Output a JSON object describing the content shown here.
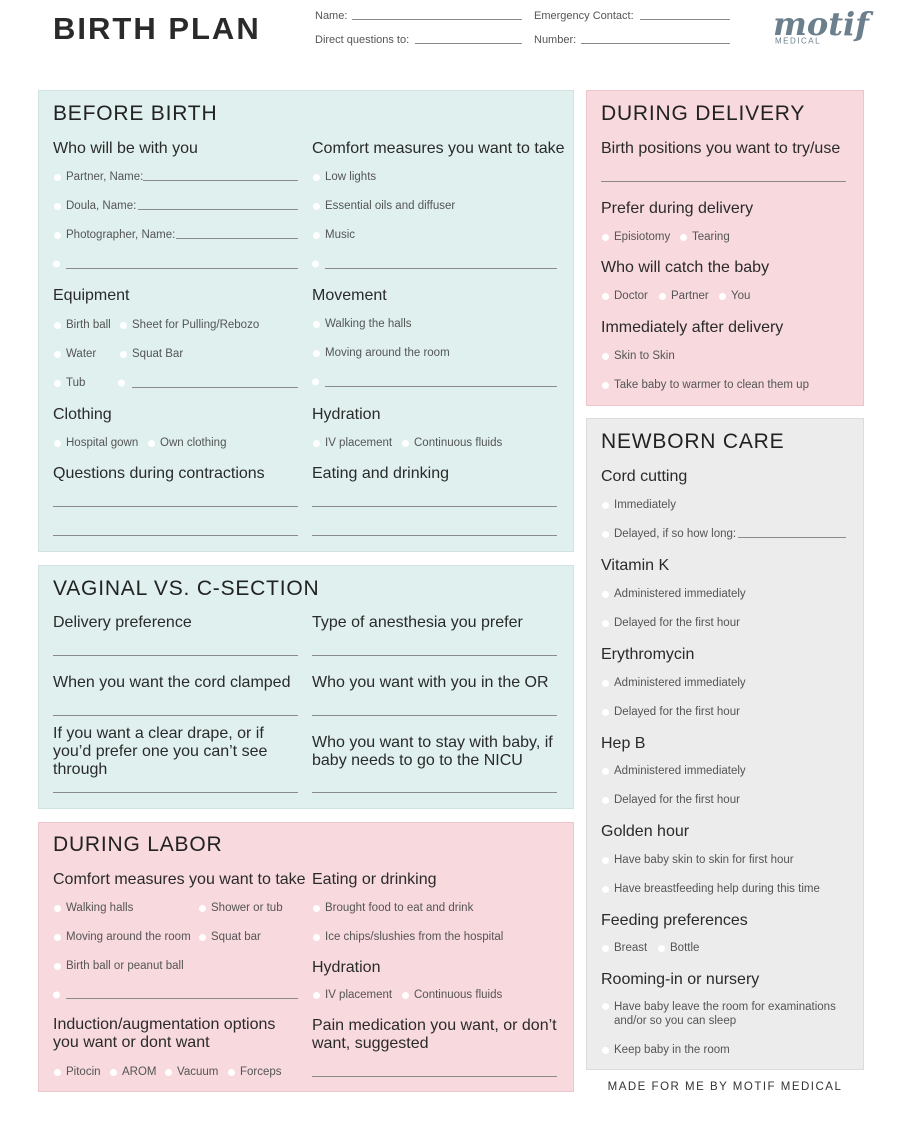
{
  "header": {
    "title": "BIRTH PLAN",
    "fields": [
      "Name:",
      "Emergency Contact:",
      "Direct questions to:",
      "Number:"
    ],
    "logo": "motif",
    "logo_sub": "MEDICAL"
  },
  "before_birth": {
    "title": "BEFORE BIRTH",
    "groups": [
      {
        "heading": "Who will be with you",
        "options": [
          "Partner, Name:",
          "Doula, Name:",
          "Photographer, Name:"
        ]
      },
      {
        "heading": "Comfort measures you want to take",
        "options": [
          "Low lights",
          "Essential oils and diffuser",
          "Music"
        ]
      },
      {
        "heading": "Equipment",
        "options": [
          "Birth ball",
          "Sheet for Pulling/Rebozo",
          "Water",
          "Squat Bar",
          "Tub"
        ]
      },
      {
        "heading": "Movement",
        "options": [
          "Walking the halls",
          "Moving around the room"
        ]
      },
      {
        "heading": "Clothing",
        "options": [
          "Hospital gown",
          "Own clothing"
        ]
      },
      {
        "heading": "Hydration",
        "options": [
          "IV placement",
          "Continuous fluids"
        ]
      },
      {
        "heading": "Questions during contractions"
      },
      {
        "heading": "Eating and drinking"
      }
    ]
  },
  "vaginal_vs_c_section": {
    "title": "VAGINAL VS. C-SECTION",
    "groups": [
      {
        "heading": "Delivery preference"
      },
      {
        "heading": "Type of anesthesia you prefer"
      },
      {
        "heading": "When you want the cord clamped"
      },
      {
        "heading": "Who you want with you in the OR"
      },
      {
        "heading": "If you want a clear drape, or if you’d prefer one you can’t see through"
      },
      {
        "heading": "Who you want to stay with baby, if baby needs to go to the NICU"
      }
    ]
  },
  "during_labor": {
    "title": "DURING LABOR",
    "groups": [
      {
        "heading": "Comfort measures you want to take",
        "options": [
          "Walking halls",
          "Shower or tub",
          "Moving around the room",
          "Squat bar",
          "Birth ball or peanut ball"
        ]
      },
      {
        "heading": "Eating or drinking",
        "options": [
          "Brought food to eat and drink",
          "Ice chips/slushies from the hospital"
        ]
      },
      {
        "heading": "Hydration",
        "options": [
          "IV placement",
          "Continuous fluids"
        ]
      },
      {
        "heading": "Induction/augmentation options you want or dont want",
        "options": [
          "Pitocin",
          "AROM",
          "Vacuum",
          "Forceps"
        ]
      },
      {
        "heading": "Pain medication you want, or don’t want, suggested"
      }
    ]
  },
  "during_delivery": {
    "title": "DURING DELIVERY",
    "groups": [
      {
        "heading": "Birth positions you want to try/use"
      },
      {
        "heading": "Prefer during delivery",
        "options": [
          "Episiotomy",
          "Tearing"
        ]
      },
      {
        "heading": "Who will catch the baby",
        "options": [
          "Doctor",
          "Partner",
          "You"
        ]
      },
      {
        "heading": "Immediately after delivery",
        "options": [
          "Skin to Skin",
          "Take baby to warmer to clean them up"
        ]
      }
    ]
  },
  "newborn_care": {
    "title": "NEWBORN CARE",
    "groups": [
      {
        "heading": "Cord cutting",
        "options": [
          "Immediately",
          "Delayed, if so how long:"
        ]
      },
      {
        "heading": "Vitamin K",
        "options": [
          "Administered immediately",
          "Delayed for the first hour"
        ]
      },
      {
        "heading": "Erythromycin",
        "options": [
          "Administered immediately",
          "Delayed for the first hour"
        ]
      },
      {
        "heading": "Hep B",
        "options": [
          "Administered immediately",
          "Delayed for the first hour"
        ]
      },
      {
        "heading": "Golden hour",
        "options": [
          "Have baby skin to skin for first hour",
          "Have breastfeeding help during this time"
        ]
      },
      {
        "heading": "Feeding preferences",
        "options": [
          "Breast",
          "Bottle"
        ]
      },
      {
        "heading": "Rooming-in or nursery",
        "options": [
          "Have baby leave the room for examinations and/or so you can sleep",
          "Keep baby in the room"
        ]
      }
    ]
  },
  "footer": "MADE FOR ME BY MOTIF MEDICAL"
}
